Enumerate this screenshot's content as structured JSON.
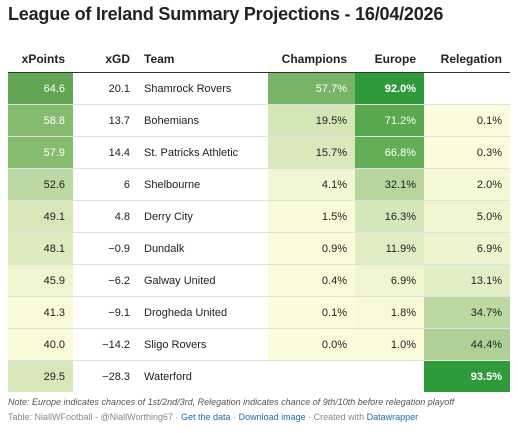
{
  "title": "League of Ireland Summary Projections - 16/04/2026",
  "columns": {
    "xpoints": "xPoints",
    "xgd": "xGD",
    "team": "Team",
    "champions": "Champions",
    "europe": "Europe",
    "relegation": "Relegation"
  },
  "rows": [
    {
      "xpoints": "64.6",
      "xgd": "20.1",
      "team": "Shamrock Rovers",
      "champions": "57.7%",
      "europe": "92.0%",
      "relegation": ""
    },
    {
      "xpoints": "58.8",
      "xgd": "13.7",
      "team": "Bohemians",
      "champions": "19.5%",
      "europe": "71.2%",
      "relegation": "0.1%"
    },
    {
      "xpoints": "57.9",
      "xgd": "14.4",
      "team": "St. Patricks Athletic",
      "champions": "15.7%",
      "europe": "66.8%",
      "relegation": "0.3%"
    },
    {
      "xpoints": "52.6",
      "xgd": "6",
      "team": "Shelbourne",
      "champions": "4.1%",
      "europe": "32.1%",
      "relegation": "2.0%"
    },
    {
      "xpoints": "49.1",
      "xgd": "4.8",
      "team": "Derry City",
      "champions": "1.5%",
      "europe": "16.3%",
      "relegation": "5.0%"
    },
    {
      "xpoints": "48.1",
      "xgd": "−0.9",
      "team": "Dundalk",
      "champions": "0.9%",
      "europe": "11.9%",
      "relegation": "6.9%"
    },
    {
      "xpoints": "45.9",
      "xgd": "−6.2",
      "team": "Galway United",
      "champions": "0.4%",
      "europe": "6.9%",
      "relegation": "13.1%"
    },
    {
      "xpoints": "41.3",
      "xgd": "−9.1",
      "team": "Drogheda United",
      "champions": "0.1%",
      "europe": "1.8%",
      "relegation": "34.7%"
    },
    {
      "xpoints": "40.0",
      "xgd": "−14.2",
      "team": "Sligo Rovers",
      "champions": "0.0%",
      "europe": "1.0%",
      "relegation": "44.4%"
    },
    {
      "xpoints": "29.5",
      "xgd": "−28.3",
      "team": "Waterford",
      "champions": "",
      "europe": "",
      "relegation": "93.5%"
    }
  ],
  "colors": {
    "xpoints": [
      "#62a554",
      "#84bb6e",
      "#86bc70",
      "#bcd9a3",
      "#d6e8ba",
      "#ddecbf",
      "#eef5cf",
      "#f9fad8",
      "#f9fad8",
      "#d6e8ba"
    ],
    "champions": [
      "#77b468",
      "#d3e6b6",
      "#d8e9bb",
      "#f2f7d3",
      "#f8fad8",
      "#fafbda",
      "#fafbda",
      "#fbfcdb",
      "#fbfcdb",
      "#ffffff"
    ],
    "europe": [
      "#2f9a3a",
      "#5aa84e",
      "#63ad56",
      "#b7d69d",
      "#d4e7b9",
      "#e0edc3",
      "#eef5cf",
      "#f8fad7",
      "#fafbda",
      "#ffffff"
    ],
    "relegation": [
      "#ffffff",
      "#fbfcdb",
      "#fbfcdb",
      "#f6f9d5",
      "#f1f6d1",
      "#eef5ce",
      "#e2eec4",
      "#bcd9a2",
      "#aed097",
      "#2f9a3a"
    ],
    "light_text": "#ffffff",
    "dark_text": "#222222"
  },
  "note": "Note: Europe indicates chances of 1st/2nd/3rd, Relegation indicates chance of 9th/10th before relegation playoff",
  "footer": {
    "credit": "Table: NiallWFootball - @NiallWorthing67 · ",
    "get_data": "Get the data",
    "sep": " · ",
    "download": "Download image",
    "created": " · Created with ",
    "datawrapper": "Datawrapper"
  },
  "chart_data": {
    "type": "table",
    "title": "League of Ireland Summary Projections - 16/04/2026",
    "columns": [
      "xPoints",
      "xGD",
      "Team",
      "Champions",
      "Europe",
      "Relegation"
    ],
    "rows": [
      [
        "64.6",
        "20.1",
        "Shamrock Rovers",
        "57.7%",
        "92.0%",
        ""
      ],
      [
        "58.8",
        "13.7",
        "Bohemians",
        "19.5%",
        "71.2%",
        "0.1%"
      ],
      [
        "57.9",
        "14.4",
        "St. Patricks Athletic",
        "15.7%",
        "66.8%",
        "0.3%"
      ],
      [
        "52.6",
        "6",
        "Shelbourne",
        "4.1%",
        "32.1%",
        "2.0%"
      ],
      [
        "49.1",
        "4.8",
        "Derry City",
        "1.5%",
        "16.3%",
        "5.0%"
      ],
      [
        "48.1",
        "−0.9",
        "Dundalk",
        "0.9%",
        "11.9%",
        "6.9%"
      ],
      [
        "45.9",
        "−6.2",
        "Galway United",
        "0.4%",
        "6.9%",
        "13.1%"
      ],
      [
        "41.3",
        "−9.1",
        "Drogheda United",
        "0.1%",
        "1.8%",
        "34.7%"
      ],
      [
        "40.0",
        "−14.2",
        "Sligo Rovers",
        "0.0%",
        "1.0%",
        "44.4%"
      ],
      [
        "29.5",
        "−28.3",
        "Waterford",
        "",
        "",
        "93.5%"
      ]
    ]
  }
}
